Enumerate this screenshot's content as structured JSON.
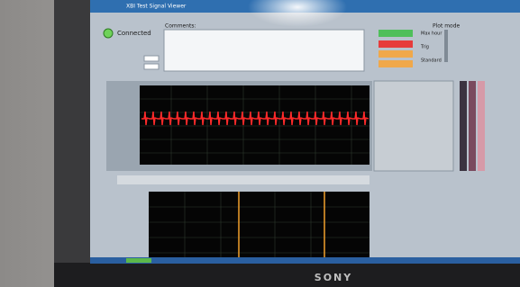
{
  "window": {
    "title": "XBI Test Signal Viewer"
  },
  "status": {
    "label": "Connected"
  },
  "comments": {
    "label": "Comments:"
  },
  "plot_mode": {
    "title": "Plot mode",
    "options": [
      "Max hour",
      "Trig",
      "Standard"
    ]
  },
  "monitor": {
    "brand": "SONY"
  }
}
